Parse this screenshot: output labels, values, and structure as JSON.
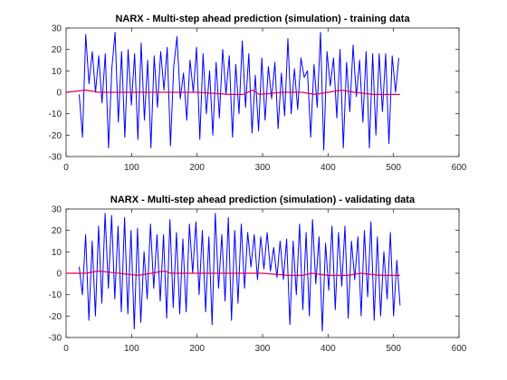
{
  "chart_data": [
    {
      "type": "line",
      "title": "NARX - Multi-step ahead prediction (simulation) - training data",
      "xlabel": "",
      "ylabel": "",
      "xlim": [
        0,
        600
      ],
      "ylim": [
        -30,
        30
      ],
      "xticks": [
        0,
        100,
        200,
        300,
        400,
        500,
        600
      ],
      "yticks": [
        -30,
        -20,
        -10,
        0,
        10,
        20,
        30
      ],
      "grid": false,
      "series": [
        {
          "color": "#0000ff",
          "x_start": 20,
          "x_step": 5,
          "values": [
            -1,
            -21,
            27,
            4,
            19,
            0,
            17,
            -5,
            18,
            -26,
            11,
            28,
            -14,
            19,
            -21,
            20,
            -6,
            18,
            -22,
            23,
            -13,
            15,
            -26,
            17,
            -7,
            19,
            1,
            21,
            -25,
            12,
            26,
            -3,
            9,
            -13,
            15,
            0,
            21,
            -22,
            18,
            -10,
            10,
            -20,
            14,
            -12,
            20,
            -1,
            17,
            -21,
            13,
            -10,
            24,
            -7,
            18,
            -19,
            8,
            -18,
            16,
            -13,
            12,
            -3,
            14,
            -17,
            9,
            -11,
            25,
            -10,
            11,
            -8,
            16,
            7,
            10,
            -21,
            13,
            -7,
            28,
            -27,
            19,
            3,
            16,
            -12,
            20,
            -26,
            14,
            -9,
            22,
            -2,
            15,
            -14,
            19,
            -26,
            18,
            -20,
            18,
            -9,
            18,
            -24,
            17,
            0,
            16
          ],
          "x_end": 508
        },
        {
          "color": "#e8004a",
          "points": [
            [
              0,
              0
            ],
            [
              30,
              1
            ],
            [
              50,
              0
            ],
            [
              100,
              0
            ],
            [
              150,
              0
            ],
            [
              200,
              0
            ],
            [
              250,
              -1
            ],
            [
              270,
              -1
            ],
            [
              285,
              1
            ],
            [
              295,
              -1
            ],
            [
              330,
              0
            ],
            [
              360,
              0
            ],
            [
              380,
              -1
            ],
            [
              400,
              0
            ],
            [
              420,
              1
            ],
            [
              440,
              0
            ],
            [
              470,
              -1
            ],
            [
              500,
              -1
            ],
            [
              510,
              -1
            ]
          ]
        }
      ]
    },
    {
      "type": "line",
      "title": "NARX - Multi-step ahead prediction (simulation) - validating data",
      "xlabel": "",
      "ylabel": "",
      "xlim": [
        0,
        600
      ],
      "ylim": [
        -30,
        30
      ],
      "xticks": [
        0,
        100,
        200,
        300,
        400,
        500,
        600
      ],
      "yticks": [
        -30,
        -20,
        -10,
        0,
        10,
        20,
        30
      ],
      "grid": false,
      "series": [
        {
          "color": "#0000ff",
          "x_start": 20,
          "x_step": 5,
          "values": [
            3,
            -10,
            18,
            -22,
            15,
            -20,
            22,
            -14,
            28,
            -7,
            27,
            -12,
            22,
            -18,
            26,
            -19,
            20,
            -26,
            21,
            -23,
            10,
            -12,
            23,
            -7,
            18,
            -13,
            18,
            -21,
            25,
            -16,
            19,
            -19,
            16,
            -18,
            23,
            0,
            24,
            -10,
            20,
            -18,
            17,
            -24,
            28,
            -7,
            18,
            -13,
            26,
            -22,
            20,
            -14,
            23,
            -7,
            19,
            3,
            18,
            -3,
            17,
            2,
            19,
            1,
            12,
            -2,
            15,
            -3,
            16,
            -24,
            15,
            -10,
            23,
            -17,
            19,
            -20,
            25,
            -5,
            17,
            -27,
            14,
            -8,
            22,
            -17,
            19,
            -6,
            22,
            -21,
            15,
            -3,
            17,
            -20,
            20,
            -11,
            24,
            -22,
            17,
            -20,
            10,
            -12,
            19,
            -20,
            6,
            -15
          ],
          "x_end": 510
        },
        {
          "color": "#e8004a",
          "points": [
            [
              0,
              0
            ],
            [
              30,
              0
            ],
            [
              50,
              1
            ],
            [
              80,
              0
            ],
            [
              110,
              -1
            ],
            [
              130,
              0
            ],
            [
              150,
              1
            ],
            [
              160,
              0
            ],
            [
              200,
              0
            ],
            [
              260,
              0
            ],
            [
              300,
              0
            ],
            [
              340,
              -1
            ],
            [
              360,
              -1
            ],
            [
              375,
              0
            ],
            [
              400,
              -1
            ],
            [
              430,
              -1
            ],
            [
              450,
              0
            ],
            [
              480,
              -1
            ],
            [
              510,
              -1
            ]
          ]
        }
      ]
    }
  ]
}
